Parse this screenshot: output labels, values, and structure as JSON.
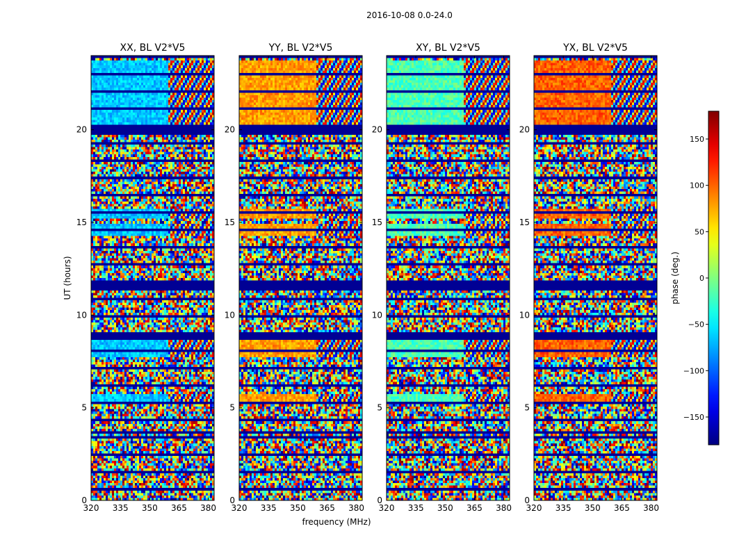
{
  "chart_data": {
    "type": "heatmap",
    "suptitle": "2016-10-08 0.0-24.0",
    "panels": [
      {
        "title": "XX, BL V2*V5",
        "pol": "XX"
      },
      {
        "title": "YY, BL V2*V5",
        "pol": "YY"
      },
      {
        "title": "XY, BL V2*V5",
        "pol": "XY"
      },
      {
        "title": "YX, BL V2*V5",
        "pol": "YX"
      }
    ],
    "xlabel": "frequency (MHz)",
    "ylabel": "UT (hours)",
    "xlim": [
      320,
      383
    ],
    "ylim": [
      0,
      24
    ],
    "xticks": [
      320,
      335,
      350,
      365,
      380
    ],
    "xtick_labels": [
      "320",
      "335",
      "350",
      "365",
      "380"
    ],
    "yticks": [
      0,
      5,
      10,
      15,
      20
    ],
    "ytick_labels": [
      "0",
      "5",
      "10",
      "15",
      "20"
    ],
    "colorbar": {
      "label": "phase (deg.)",
      "range": [
        -180,
        180
      ],
      "ticks": [
        -150,
        -100,
        -50,
        0,
        50,
        100,
        150
      ],
      "tick_labels": [
        "−150",
        "−100",
        "−50",
        "0",
        "50",
        "100",
        "150"
      ],
      "colormap": "jet"
    },
    "blank_hour_bands": [
      [
        19.8,
        20.2
      ],
      [
        11.3,
        11.7
      ],
      [
        8.7,
        9.1
      ],
      [
        3.6,
        3.8
      ],
      [
        5.15,
        5.3
      ]
    ],
    "coherent_hour_bands": [
      [
        20.2,
        23.8
      ],
      [
        7.8,
        8.7
      ],
      [
        5.3,
        5.7
      ],
      [
        15.2,
        15.8
      ],
      [
        14.3,
        14.9
      ]
    ],
    "grid": false
  }
}
